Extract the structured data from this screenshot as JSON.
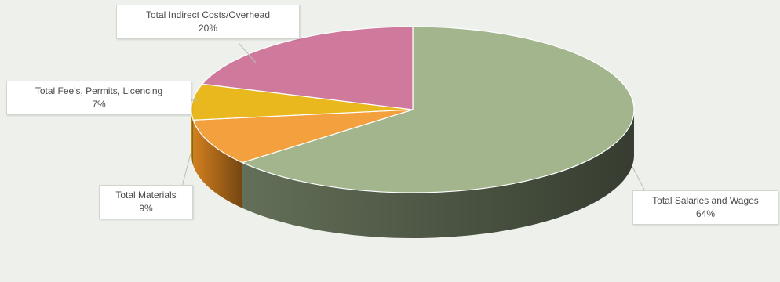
{
  "chart_data": {
    "type": "pie",
    "title": "",
    "slices": [
      {
        "label": "Total Salaries and Wages",
        "value": 64,
        "display": "64%",
        "color": "#a3b58d",
        "side_color": "#636f58"
      },
      {
        "label": "Total Materials",
        "value": 9,
        "display": "9%",
        "color": "#f3a03e",
        "side_color": "#d27f1f"
      },
      {
        "label": "Total Fee's, Permits, Licencing",
        "value": 7,
        "display": "7%",
        "color": "#e9b81e",
        "side_color": "#c7960f"
      },
      {
        "label": "Total Indirect Costs/Overhead",
        "value": 20,
        "display": "20%",
        "color": "#cf7a9d",
        "side_color": "#a75a7b"
      }
    ],
    "legend": "none",
    "style": "3d-pie-with-callout-labels"
  }
}
